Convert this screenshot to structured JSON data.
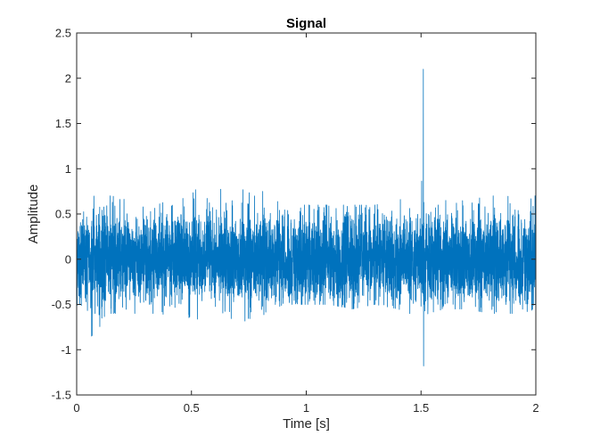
{
  "chart_data": {
    "type": "line",
    "title": "Signal",
    "xlabel": "Time [s]",
    "ylabel": "Amplitude",
    "xlim": [
      0,
      2
    ],
    "ylim": [
      -1.5,
      2.5
    ],
    "xticks": [
      0,
      0.5,
      1,
      1.5,
      2
    ],
    "xtick_labels": [
      "0",
      "0.5",
      "1",
      "1.5",
      "2"
    ],
    "yticks": [
      -1.5,
      -1,
      -0.5,
      0,
      0.5,
      1,
      1.5,
      2,
      2.5
    ],
    "ytick_labels": [
      "-1.5",
      "-1",
      "-0.5",
      "0",
      "0.5",
      "1",
      "1.5",
      "2",
      "2.5"
    ],
    "grid": false,
    "series_color": "#0072BD",
    "series": [
      {
        "x": [
          0,
          0.05,
          0.065,
          0.15,
          0.35,
          0.5,
          0.6,
          0.7,
          0.72,
          0.75,
          0.9,
          1.0,
          1.1,
          1.2,
          1.3,
          1.4,
          1.5,
          1.505,
          1.51,
          1.515,
          1.52,
          1.53,
          1.6,
          1.7,
          1.8,
          1.9,
          2.0
        ],
        "envelope_max": [
          0.7,
          0.75,
          0.7,
          0.7,
          0.6,
          0.75,
          0.85,
          0.9,
          0.9,
          0.85,
          0.6,
          0.6,
          0.6,
          0.6,
          0.6,
          0.65,
          0.75,
          1.1,
          2.1,
          1.0,
          0.75,
          0.65,
          0.65,
          0.65,
          0.7,
          0.7,
          0.7
        ],
        "envelope_min": [
          -0.6,
          -0.7,
          -0.85,
          -0.6,
          -0.6,
          -0.65,
          -0.7,
          -0.7,
          -0.75,
          -0.7,
          -0.5,
          -0.5,
          -0.5,
          -0.55,
          -0.5,
          -0.55,
          -0.65,
          -0.95,
          -1.18,
          -0.85,
          -0.7,
          -0.6,
          -0.55,
          -0.55,
          -0.6,
          -0.6,
          -0.6
        ],
        "typical_amplitude": 0.33
      }
    ]
  }
}
